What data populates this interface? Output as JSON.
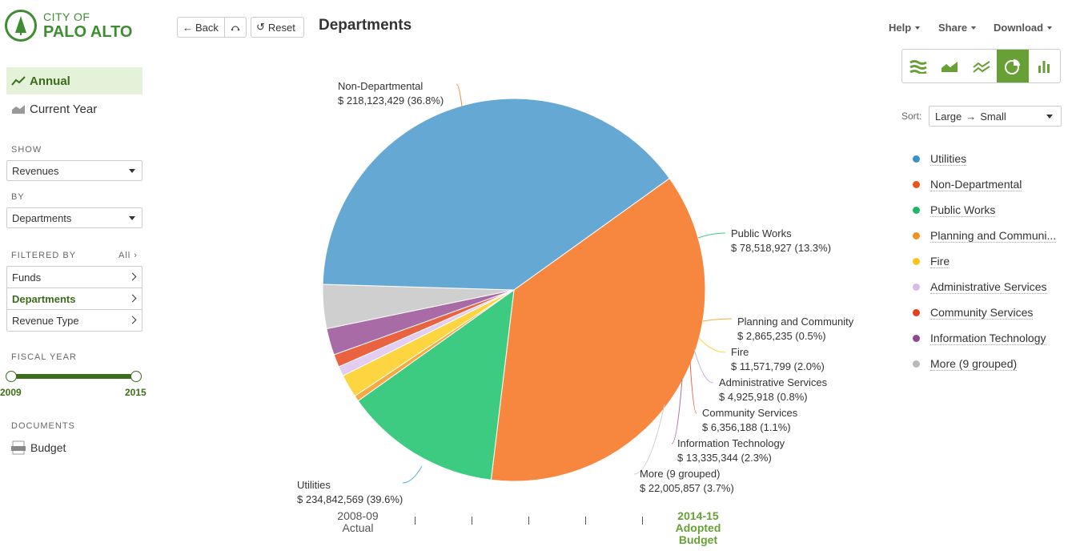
{
  "logo": {
    "line1": "CITY OF",
    "line2": "PALO ALTO"
  },
  "nav": {
    "annual": "Annual",
    "current_year": "Current Year"
  },
  "show": {
    "label": "SHOW",
    "value": "Revenues"
  },
  "by": {
    "label": "BY",
    "value": "Departments"
  },
  "filtered": {
    "label": "FILTERED BY",
    "all": "All",
    "items": [
      "Funds",
      "Departments",
      "Revenue Type"
    ]
  },
  "fiscal": {
    "label": "FISCAL YEAR",
    "start": "2009",
    "end": "2015"
  },
  "documents": {
    "label": "DOCUMENTS",
    "item": "Budget"
  },
  "toolbar": {
    "back": "Back",
    "reset": "Reset"
  },
  "page_title": "Departments",
  "menu": {
    "help": "Help",
    "share": "Share",
    "download": "Download"
  },
  "sort": {
    "label": "Sort:",
    "value_from": "Large",
    "value_to": "Small"
  },
  "legend": [
    {
      "name": "Utilities",
      "color": "#3a91c5"
    },
    {
      "name": "Non-Departmental",
      "color": "#e8541a"
    },
    {
      "name": "Public Works",
      "color": "#22b56a"
    },
    {
      "name": "Planning and Communi...",
      "color": "#f2911f"
    },
    {
      "name": "Fire",
      "color": "#f7c51a"
    },
    {
      "name": "Administrative Services",
      "color": "#d8bde8"
    },
    {
      "name": "Community Services",
      "color": "#e2401e"
    },
    {
      "name": "Information Technology",
      "color": "#8d4a8f"
    },
    {
      "name": "More (9 grouped)",
      "color": "#b9b9b9"
    }
  ],
  "timeline": {
    "start_line1": "2008-09",
    "start_line2": "Actual",
    "end_line1": "2014-15",
    "end_line2": "Adopted",
    "end_line3": "Budget"
  },
  "chart_data": {
    "type": "pie",
    "title": "Departments",
    "labels": [
      "Non-Departmental",
      "Public Works",
      "Planning and Community",
      "Fire",
      "Administrative Services",
      "Community Services",
      "Information Technology",
      "More (9 grouped)",
      "Utilities"
    ],
    "amounts": [
      "$ 218,123,429",
      "$ 78,518,927",
      "$ 2,865,235",
      "$ 11,571,799",
      "$ 4,925,918",
      "$ 6,356,188",
      "$ 13,335,344",
      "$ 22,005,857",
      "$ 234,842,569"
    ],
    "percents": [
      "(36.8%)",
      "(13.3%)",
      "(0.5%)",
      "(2.0%)",
      "(0.8%)",
      "(1.1%)",
      "(2.3%)",
      "(3.7%)",
      "(39.6%)"
    ],
    "values": [
      218123429,
      78518927,
      2865235,
      11571799,
      4925918,
      6356188,
      13335344,
      22005857,
      234842569
    ],
    "colors": [
      "#f7863f",
      "#3ccb80",
      "#f8a93f",
      "#fcd540",
      "#e4cdf0",
      "#ea6340",
      "#a86ba6",
      "#cfcfcf",
      "#66a8d4"
    ],
    "line_colors": [
      "#f7863f",
      "#3ccb80",
      "#f8a93f",
      "#fcd540",
      "#c9b0db",
      "#ea6340",
      "#a86ba6",
      "#cfcfcf",
      "#66a8d4"
    ]
  }
}
